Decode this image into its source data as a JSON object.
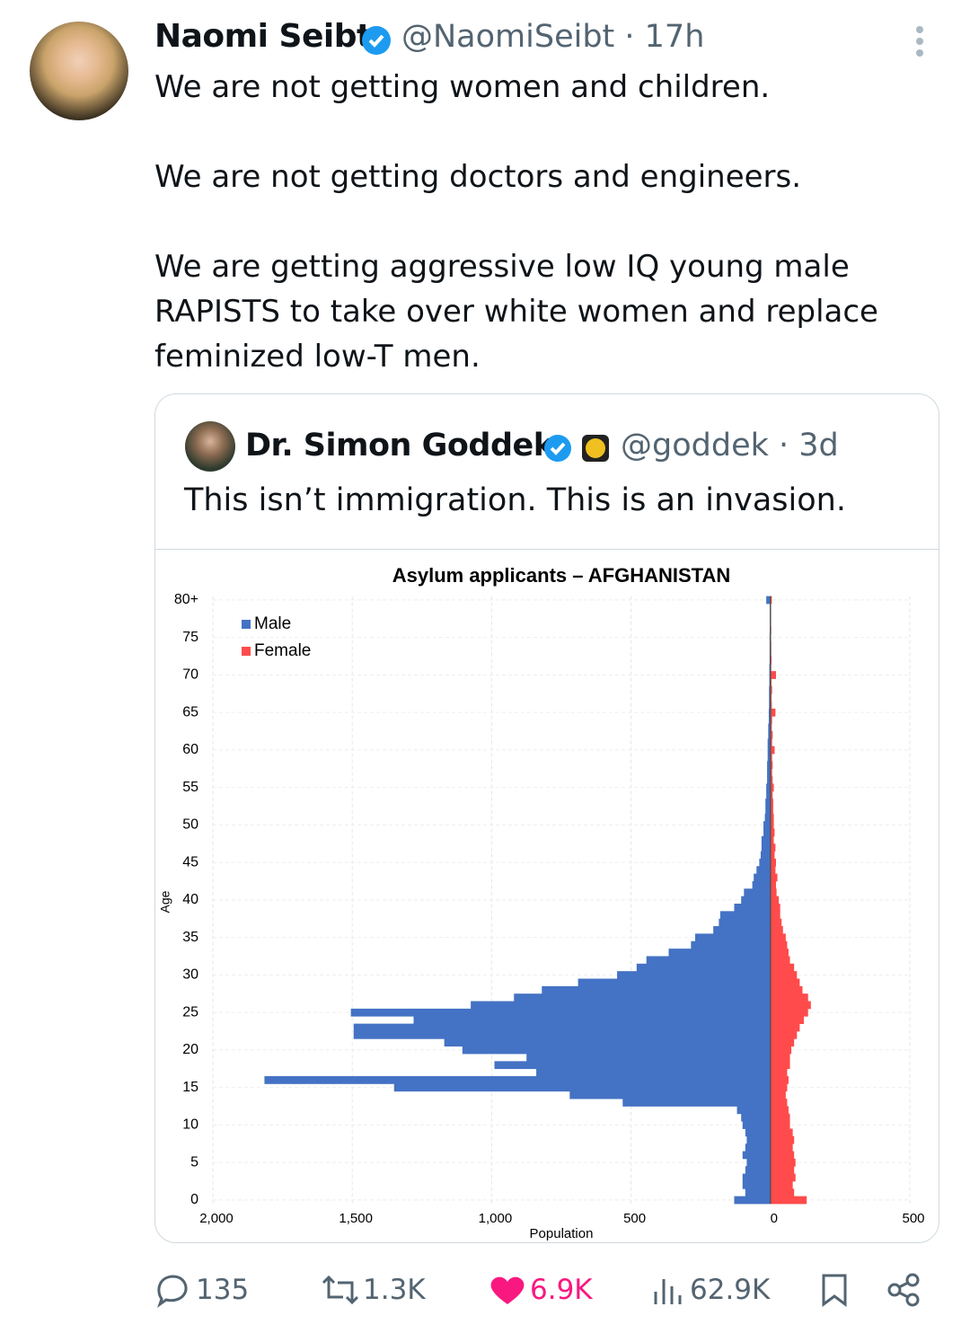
{
  "tweet": {
    "author": "Naomi Seibt",
    "meta": "@NaomiSeibt · 17h",
    "paragraphs": [
      "We are not getting women and children.",
      "We are not getting doctors and engineers.",
      "We are getting aggressive low IQ young male RAPISTS to take over white women and replace feminized low-T men."
    ]
  },
  "quoted": {
    "author": "Dr. Simon Goddek",
    "meta": "@goddek · 3d",
    "text": "This isn’t immigration. This is an invasion."
  },
  "chart_data": {
    "type": "bar",
    "orientation": "horizontal",
    "title": "Asylum applicants – AFGHANISTAN",
    "x_label": "Population",
    "y_label": "Age",
    "categories": [
      "0",
      null,
      null,
      null,
      null,
      "5",
      null,
      null,
      null,
      null,
      "10",
      null,
      null,
      null,
      null,
      "15",
      null,
      null,
      null,
      null,
      "20",
      null,
      null,
      null,
      null,
      "25",
      null,
      null,
      null,
      null,
      "30",
      null,
      null,
      null,
      null,
      "35",
      null,
      null,
      null,
      null,
      "40",
      null,
      null,
      null,
      null,
      "45",
      null,
      null,
      null,
      null,
      "50",
      null,
      null,
      null,
      null,
      "55",
      null,
      null,
      null,
      null,
      "60",
      null,
      null,
      null,
      null,
      "65",
      null,
      null,
      null,
      null,
      "70",
      null,
      null,
      null,
      null,
      "75",
      null,
      null,
      null,
      null,
      "80+"
    ],
    "series": [
      {
        "name": "Male",
        "color": "#4472c4",
        "values": [
          -130,
          -90,
          -100,
          -100,
          -90,
          -85,
          -100,
          -90,
          -85,
          -90,
          -100,
          -105,
          -120,
          -530,
          -720,
          -1350,
          -1815,
          -840,
          -990,
          -875,
          -1105,
          -1170,
          -1495,
          -1495,
          -1280,
          -1505,
          -1075,
          -920,
          -820,
          -690,
          -550,
          -480,
          -445,
          -365,
          -285,
          -270,
          -205,
          -185,
          -180,
          -130,
          -105,
          -95,
          -65,
          -60,
          -50,
          -40,
          -35,
          -32,
          -32,
          -25,
          -25,
          -20,
          -18,
          -18,
          -15,
          -15,
          -12,
          -12,
          -12,
          -10,
          -10,
          -10,
          -8,
          -8,
          -6,
          -6,
          -5,
          -5,
          -5,
          -4,
          -4,
          -4,
          -3,
          -3,
          -3,
          -3,
          -2,
          -2,
          -2,
          -2,
          -15
        ]
      },
      {
        "name": "Female",
        "color": "#ff4b4b",
        "values": [
          130,
          85,
          80,
          90,
          85,
          90,
          85,
          80,
          85,
          80,
          70,
          70,
          65,
          60,
          55,
          60,
          65,
          60,
          70,
          70,
          75,
          85,
          95,
          105,
          120,
          135,
          145,
          135,
          115,
          105,
          95,
          85,
          70,
          65,
          60,
          55,
          45,
          40,
          35,
          35,
          30,
          22,
          20,
          25,
          18,
          20,
          15,
          18,
          12,
          15,
          12,
          12,
          10,
          10,
          8,
          12,
          8,
          6,
          8,
          6,
          15,
          6,
          8,
          5,
          6,
          18,
          5,
          4,
          6,
          4,
          20,
          3,
          4,
          3,
          3,
          2,
          3,
          2,
          2,
          2,
          5
        ]
      }
    ],
    "xlim": [
      -2000,
      500
    ],
    "xticks": [
      {
        "value": -2000,
        "label": "2,000"
      },
      {
        "value": -1500,
        "label": "1,500"
      },
      {
        "value": -1000,
        "label": "1,000"
      },
      {
        "value": -500,
        "label": "500"
      },
      0,
      500
    ],
    "grid": true,
    "legend": "upper left"
  },
  "actions": {
    "replies": "135",
    "reposts": "1.3K",
    "likes": "6.9K",
    "views": "62.9K"
  }
}
